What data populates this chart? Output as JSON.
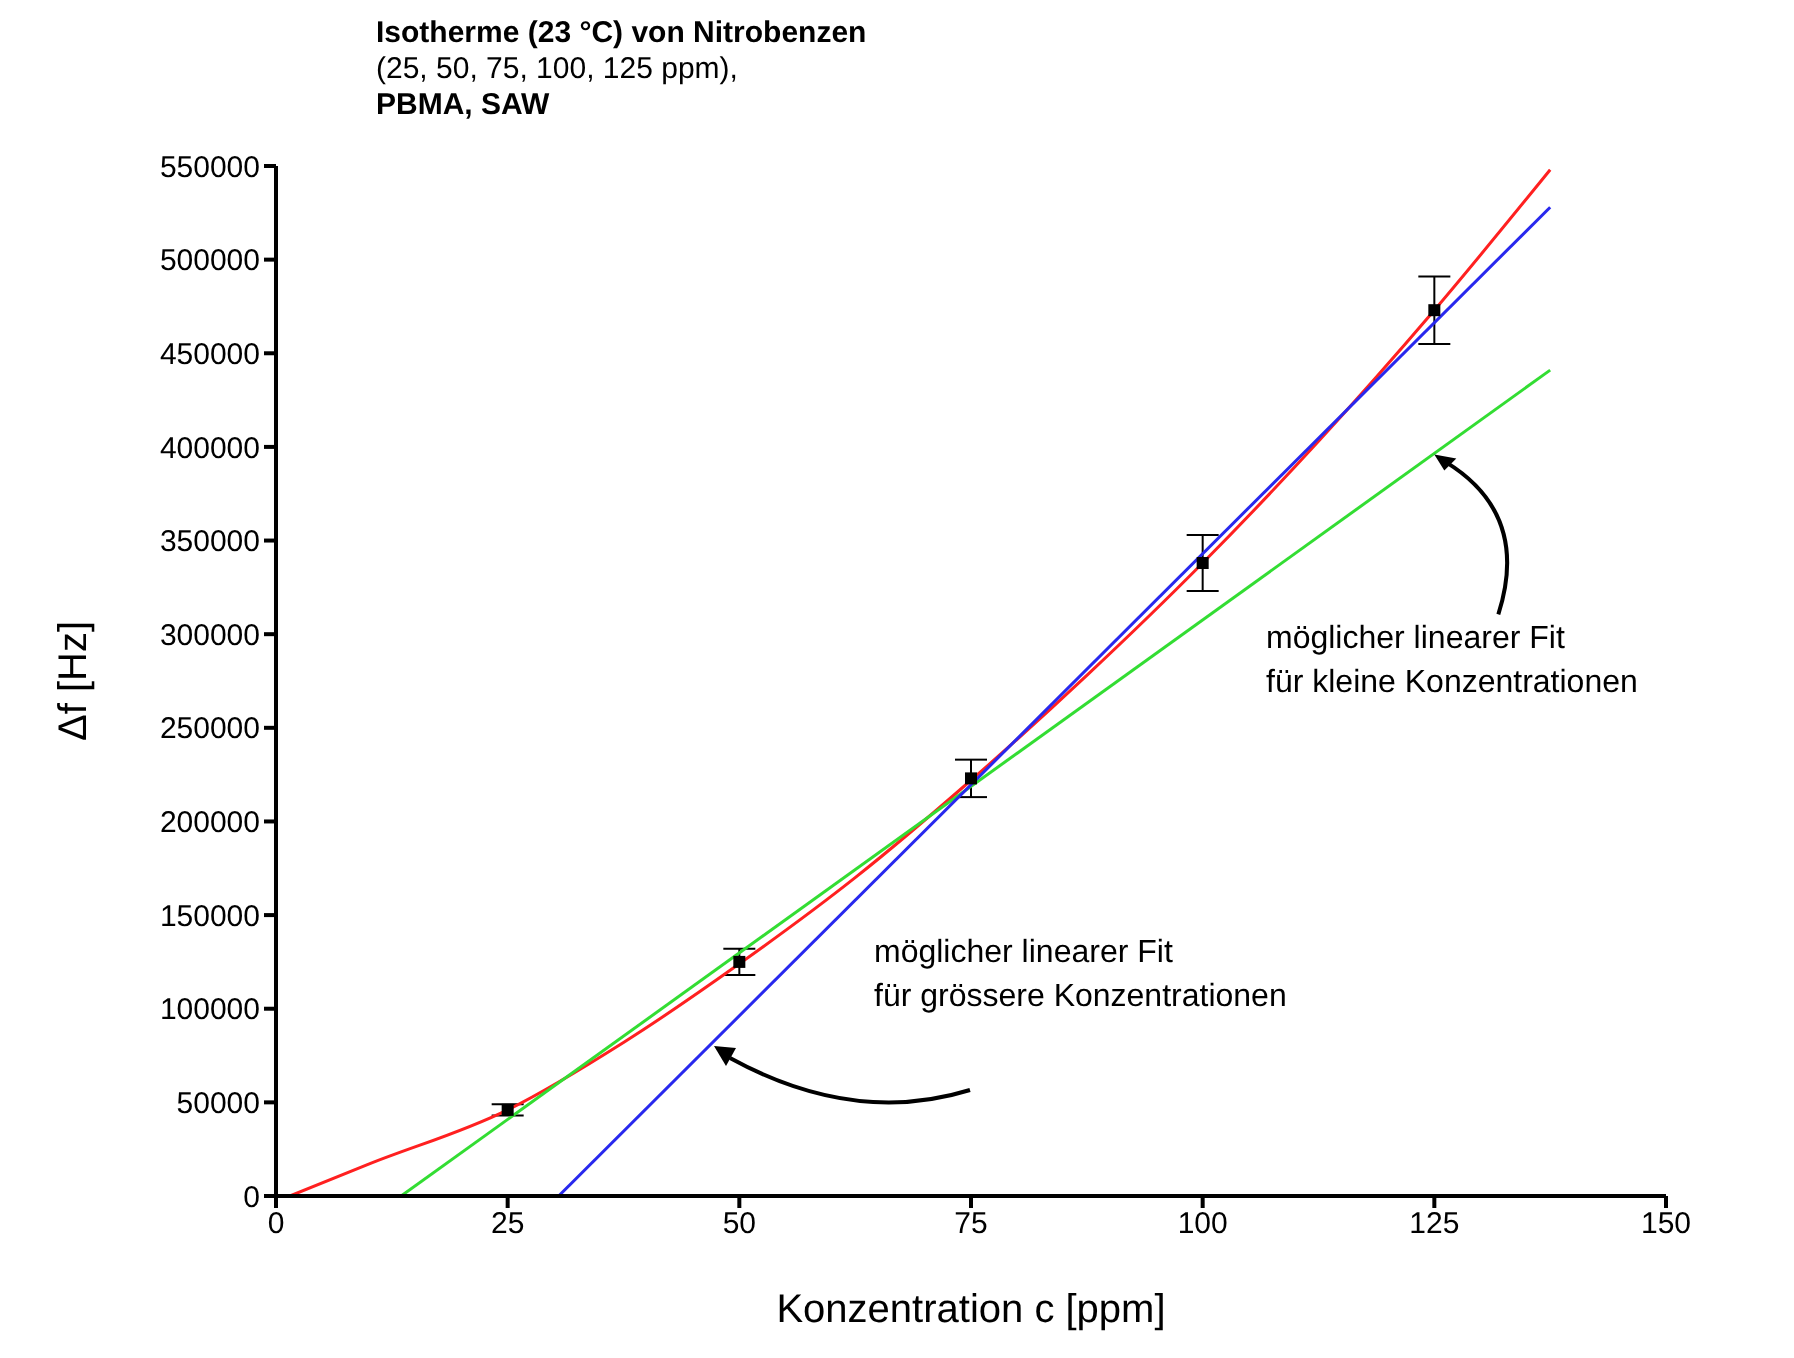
{
  "chart_data": {
    "type": "line",
    "title": "Isotherme (23 °C) von Nitrobenzen",
    "subtitle": "(25, 50, 75, 100, 125 ppm),\nPBMA, SAW",
    "xlabel": "Konzentration c [ppm]",
    "ylabel": "Δf [Hz]",
    "xlim": [
      0,
      150
    ],
    "xticks": [
      0,
      25,
      50,
      75,
      100,
      125,
      150
    ],
    "ylim": [
      0,
      550000
    ],
    "yticks": [
      0,
      50000,
      100000,
      150000,
      200000,
      250000,
      300000,
      350000,
      400000,
      450000,
      500000,
      550000
    ],
    "line_style": "solid",
    "series": [
      {
        "type": "scatter",
        "marker": "square",
        "color": "#000000",
        "x": [
          25,
          50,
          75,
          100,
          125
        ],
        "values": [
          46000,
          125000,
          223000,
          338000,
          473000
        ],
        "errors": [
          3000,
          7000,
          10000,
          15000,
          18000
        ]
      },
      {
        "marker": "none",
        "color": "#ff2020",
        "x": [
          1.5,
          10,
          25,
          37.5,
          50,
          62.5,
          75,
          87.5,
          100,
          112.5,
          125,
          137.5
        ],
        "values": [
          0,
          17000,
          46000,
          82000,
          124000,
          170000,
          222000,
          278000,
          338000,
          403000,
          473000,
          548000
        ]
      },
      {
        "marker": "none",
        "color": "#33dd33",
        "x": [
          13.5,
          137.5
        ],
        "values": [
          0,
          441000
        ]
      },
      {
        "marker": "none",
        "color": "#2828ee",
        "x": [
          30.5,
          137.5
        ],
        "values": [
          0,
          528000
        ]
      }
    ],
    "annotations": [
      {
        "text": "möglicher linearer Fit\nfür kleine Konzentrationen",
        "x": 125,
        "y": 396000
      },
      "möglicher linearer Fit\nfür grössere Konzentrationen"
    ]
  }
}
